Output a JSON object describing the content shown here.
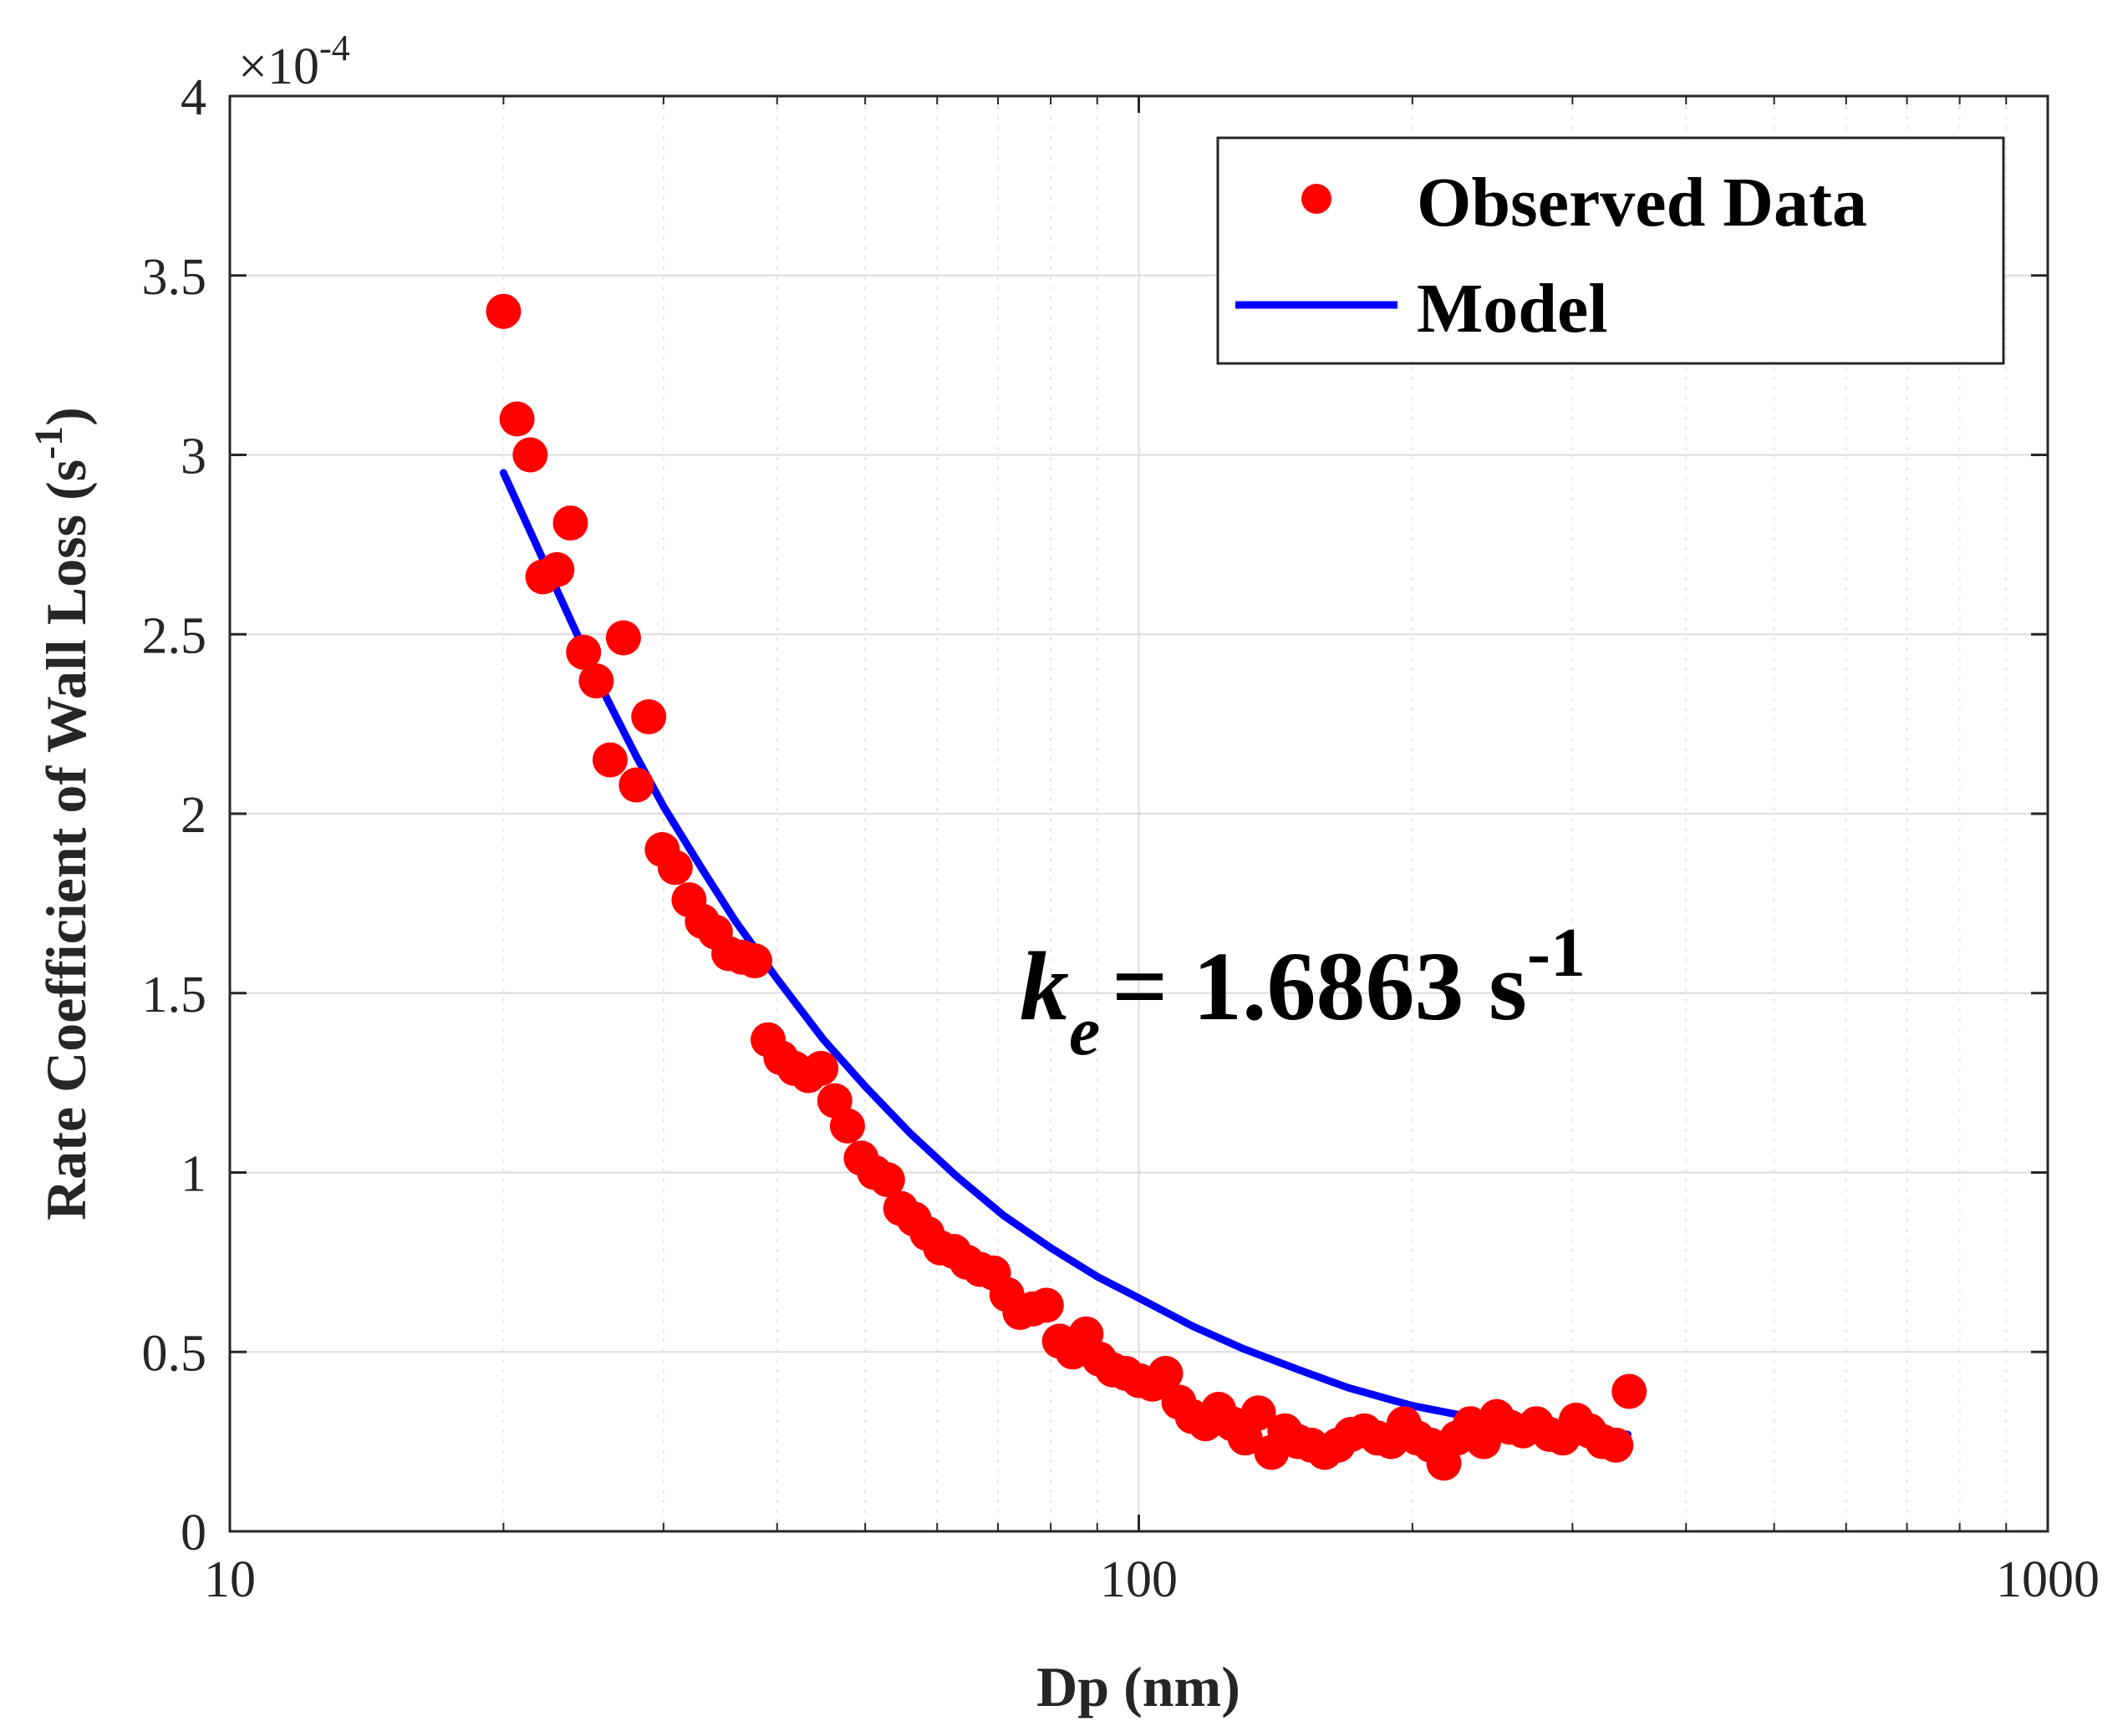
{
  "chart_data": {
    "type": "scatter",
    "title": "",
    "xlabel": "Dp (nm)",
    "ylabel_main": "Rate Coefficient of Wall Loss (s",
    "ylabel_sup": "-1",
    "ylabel_close": ")",
    "xscale": "log",
    "xlim": [
      10,
      1000
    ],
    "ylim": [
      0,
      4
    ],
    "y_multiplier_base": "×10",
    "y_multiplier_exp": "-4",
    "grid": true,
    "x_ticks": [
      10,
      100,
      1000
    ],
    "x_tick_labels": [
      "10",
      "100",
      "1000"
    ],
    "y_ticks": [
      0,
      0.5,
      1,
      1.5,
      2,
      2.5,
      3,
      3.5,
      4
    ],
    "y_tick_labels": [
      "0",
      "0.5",
      "1",
      "1.5",
      "2",
      "2.5",
      "3",
      "3.5",
      "4"
    ],
    "legend_position": "top-right",
    "legend": [
      {
        "label": "Observed Data",
        "marker": "circle",
        "color": "#ff0000"
      },
      {
        "label": "Model",
        "marker": "line",
        "color": "#0000ff"
      }
    ],
    "annotation": {
      "symbol": "k",
      "subscript": "e",
      "text": "= 1.6863 s",
      "sup": "-1"
    },
    "series": [
      {
        "name": "Observed Data",
        "color": "#ff0000",
        "x": [
          20.0,
          20.7,
          21.4,
          22.1,
          22.9,
          23.7,
          24.5,
          25.3,
          26.2,
          27.1,
          28.0,
          28.9,
          29.9,
          30.9,
          32.0,
          33.1,
          34.2,
          35.4,
          36.6,
          37.8,
          39.1,
          40.4,
          41.8,
          43.3,
          44.7,
          46.3,
          47.8,
          49.5,
          51.2,
          52.9,
          54.7,
          56.6,
          58.5,
          60.5,
          62.6,
          64.7,
          66.9,
          69.2,
          71.6,
          74.0,
          76.5,
          79.1,
          81.8,
          84.6,
          87.5,
          90.5,
          93.6,
          96.8,
          100.1,
          103.5,
          107.0,
          110.7,
          114.5,
          118.4,
          122.4,
          126.6,
          130.9,
          135.4,
          140.0,
          144.8,
          149.7,
          154.8,
          160.1,
          165.6,
          171.2,
          177.1,
          183.1,
          189.4,
          195.8,
          202.5,
          209.4,
          216.6,
          223.9,
          231.6,
          239.5,
          247.6,
          256.1,
          264.8,
          273.8,
          283.2,
          292.8,
          302.8,
          313.1,
          323.8,
          334.9,
          346.3
        ],
        "values": [
          3.4,
          3.1,
          3.0,
          2.66,
          2.68,
          2.81,
          2.45,
          2.37,
          2.15,
          2.49,
          2.08,
          2.27,
          1.9,
          1.85,
          1.76,
          1.7,
          1.67,
          1.61,
          1.6,
          1.59,
          1.37,
          1.32,
          1.29,
          1.27,
          1.29,
          1.2,
          1.13,
          1.04,
          1.0,
          0.98,
          0.9,
          0.87,
          0.83,
          0.79,
          0.78,
          0.75,
          0.73,
          0.72,
          0.66,
          0.61,
          0.62,
          0.63,
          0.53,
          0.5,
          0.55,
          0.48,
          0.45,
          0.44,
          0.42,
          0.41,
          0.44,
          0.36,
          0.32,
          0.3,
          0.34,
          0.3,
          0.26,
          0.33,
          0.22,
          0.28,
          0.25,
          0.24,
          0.22,
          0.24,
          0.27,
          0.28,
          0.26,
          0.25,
          0.3,
          0.26,
          0.24,
          0.19,
          0.26,
          0.3,
          0.25,
          0.32,
          0.29,
          0.28,
          0.3,
          0.27,
          0.26,
          0.31,
          0.28,
          0.25,
          0.24,
          0.39
        ]
      },
      {
        "name": "Model",
        "color": "#0000ff",
        "x": [
          20,
          22,
          24,
          26,
          28,
          30,
          33,
          36,
          40,
          45,
          50,
          56,
          63,
          71,
          80,
          90,
          100,
          115,
          130,
          150,
          170,
          200,
          230,
          260,
          300,
          345
        ],
        "values": [
          2.95,
          2.72,
          2.51,
          2.32,
          2.16,
          2.02,
          1.85,
          1.7,
          1.54,
          1.37,
          1.24,
          1.11,
          0.99,
          0.88,
          0.79,
          0.71,
          0.65,
          0.57,
          0.51,
          0.45,
          0.4,
          0.35,
          0.32,
          0.3,
          0.28,
          0.27
        ]
      }
    ]
  }
}
